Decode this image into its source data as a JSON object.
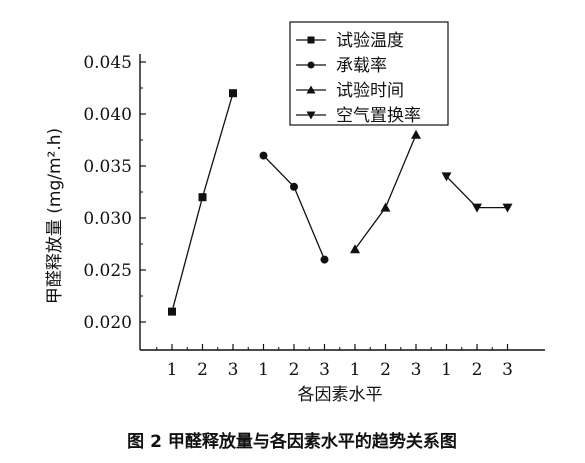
{
  "chart_data": {
    "type": "line",
    "title": "",
    "caption": "图 2   甲醛释放量与各因素水平的趋势关系图",
    "xlabel": "各因素水平",
    "ylabel": "甲醛释放量 (mg/m².h)",
    "ylim": [
      0.018,
      0.045
    ],
    "yticks": [
      "0.020",
      "0.025",
      "0.030",
      "0.035",
      "0.040",
      "0.045"
    ],
    "ytick_values": [
      0.02,
      0.025,
      0.03,
      0.035,
      0.04,
      0.045
    ],
    "xtick_labels": [
      "1",
      "2",
      "3",
      "1",
      "2",
      "3",
      "1",
      "2",
      "3",
      "1",
      "2",
      "3"
    ],
    "grid": false,
    "legend_position": "top-right",
    "series": [
      {
        "name": "试验温度",
        "marker": "square",
        "values": [
          0.021,
          0.032,
          0.042
        ]
      },
      {
        "name": "承载率",
        "marker": "circle",
        "values": [
          0.036,
          0.033,
          0.026
        ]
      },
      {
        "name": "试验时间",
        "marker": "triangle-up",
        "values": [
          0.027,
          0.031,
          0.038
        ]
      },
      {
        "name": "空气置换率",
        "marker": "triangle-down",
        "values": [
          0.034,
          0.031,
          0.031
        ]
      }
    ]
  }
}
